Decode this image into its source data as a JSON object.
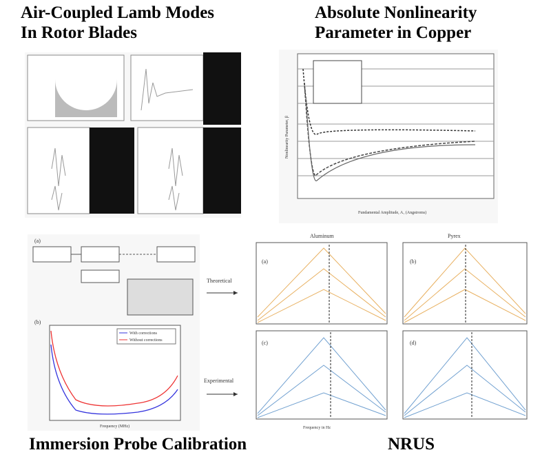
{
  "panels": [
    {
      "title_lines": [
        "Air-Coupled Lamb Modes",
        "In Rotor Blades"
      ]
    },
    {
      "title_lines": [
        "Absolute Nonlinearity",
        "Parameter in Copper"
      ],
      "y_label": "Nonlinearity Parameter, β",
      "x_label": "Fundamental Amplitude, A₁ (Angstroms)"
    },
    {
      "title_lines": [
        "Immersion Probe Calibration"
      ],
      "labels": [
        "(a)",
        "(b)"
      ],
      "legend": [
        "With corrections",
        "Without corrections"
      ],
      "x_label": "Frequency (MHz)"
    },
    {
      "title_lines": [
        "NRUS"
      ],
      "columns": [
        "Aluminum",
        "Pyrex"
      ],
      "rows": [
        "Theoretical",
        "Experimental"
      ],
      "labels": [
        "(a)",
        "(b)",
        "(c)",
        "(d)"
      ],
      "x_label": "Frequency in Hz"
    }
  ]
}
